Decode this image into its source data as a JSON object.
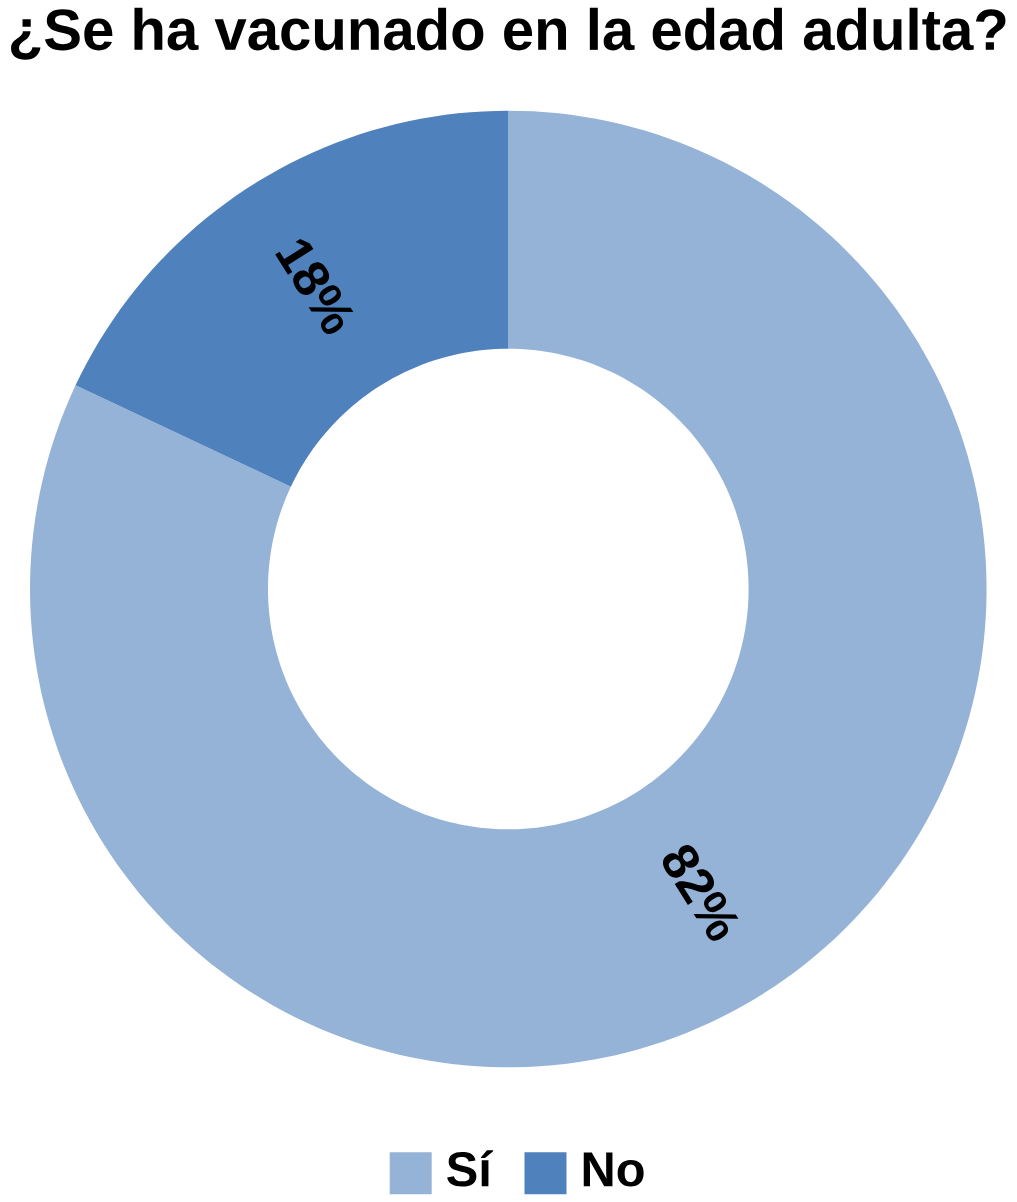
{
  "chart_data": {
    "type": "donut",
    "title": "¿Se ha vacunado en la edad adulta?",
    "categories": [
      "Sí",
      "No"
    ],
    "values": [
      82,
      18
    ],
    "colors": [
      "#95b3d7",
      "#4f81bd"
    ],
    "value_labels": [
      "82%",
      "18%"
    ],
    "legend": "bottom"
  }
}
